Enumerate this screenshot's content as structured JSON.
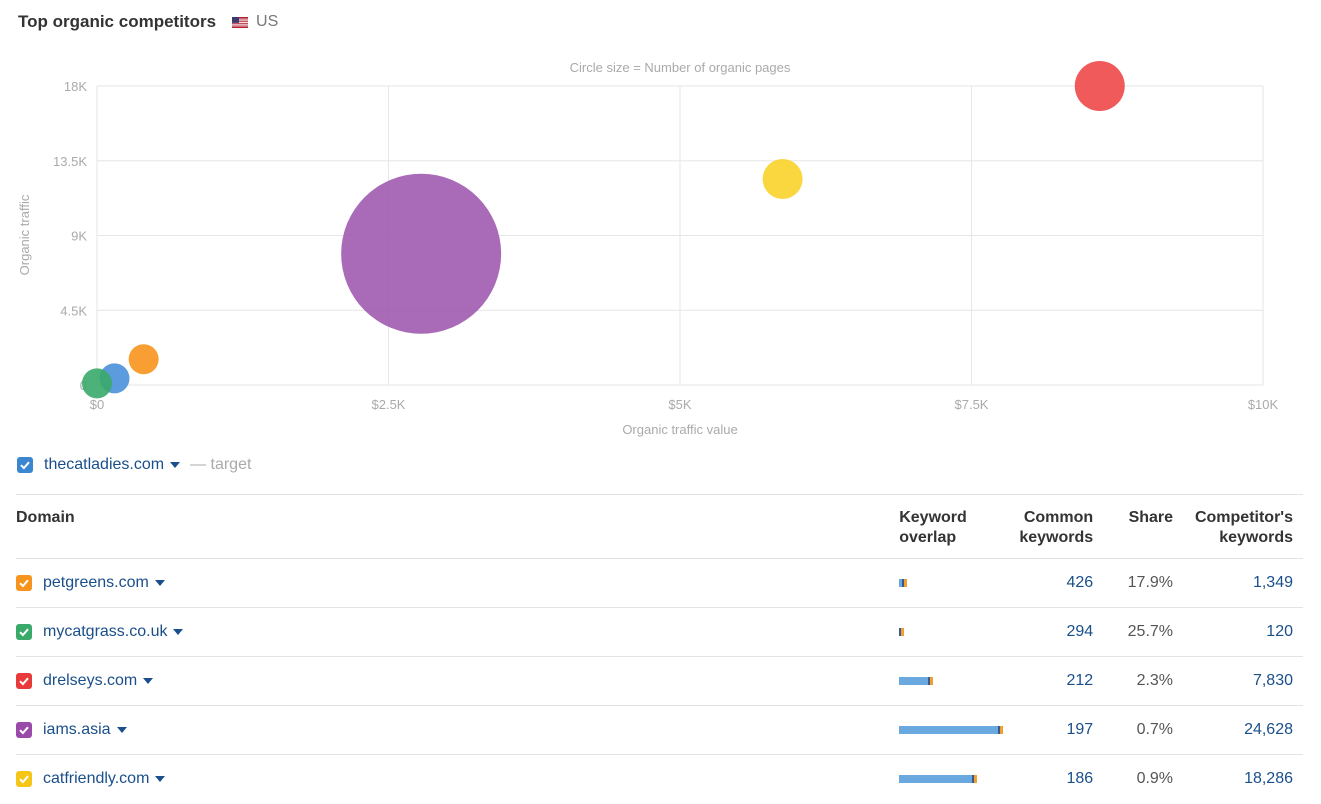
{
  "header": {
    "title": "Top organic competitors",
    "country": "US",
    "flag_icon": "us-flag-icon"
  },
  "chart_data": {
    "type": "scatter",
    "note": "Circle size = Number of organic pages",
    "xlabel": "Organic traffic value",
    "ylabel": "Organic traffic",
    "xlim": [
      0,
      10000
    ],
    "ylim": [
      0,
      18000
    ],
    "x_ticks": [
      {
        "value": 0,
        "label": "$0"
      },
      {
        "value": 2500,
        "label": "$2.5K"
      },
      {
        "value": 5000,
        "label": "$5K"
      },
      {
        "value": 7500,
        "label": "$7.5K"
      },
      {
        "value": 10000,
        "label": "$10K"
      }
    ],
    "y_ticks": [
      {
        "value": 0,
        "label": "0"
      },
      {
        "value": 4500,
        "label": "4.5K"
      },
      {
        "value": 9000,
        "label": "9K"
      },
      {
        "value": 13500,
        "label": "13.5K"
      },
      {
        "value": 18000,
        "label": "18K"
      }
    ],
    "grid": true,
    "points": [
      {
        "domain": "thecatladies.com",
        "x": 150,
        "y": 400,
        "size": 1.2,
        "color": "#4a90d9"
      },
      {
        "domain": "petgreens.com",
        "x": 400,
        "y": 1550,
        "size": 1.2,
        "color": "#f7941d"
      },
      {
        "domain": "mycatgrass.co.uk",
        "x": 0,
        "y": 100,
        "size": 1.2,
        "color": "#3aaa6a"
      },
      {
        "domain": "drelseys.com",
        "x": 8600,
        "y": 18000,
        "size": 2.0,
        "color": "#f04848"
      },
      {
        "domain": "iams.asia",
        "x": 2780,
        "y": 7900,
        "size": 6.4,
        "color": "#a05ab0"
      },
      {
        "domain": "catfriendly.com",
        "x": 5880,
        "y": 12400,
        "size": 1.6,
        "color": "#fad22a"
      }
    ]
  },
  "target": {
    "domain": "thecatladies.com",
    "suffix": "— target",
    "color": "#3a86d0"
  },
  "table": {
    "headers": {
      "domain": "Domain",
      "overlap_l1": "Keyword",
      "overlap_l2": "overlap",
      "common_l1": "Common",
      "common_l2": "keywords",
      "share": "Share",
      "comp_l1": "Competitor's",
      "comp_l2": "keywords"
    },
    "rows": [
      {
        "domain": "petgreens.com",
        "color": "#f7941d",
        "overlap_target": 3,
        "overlap_competitor": 1349,
        "common": "426",
        "share": "17.9%",
        "competitor": "1,349"
      },
      {
        "domain": "mycatgrass.co.uk",
        "color": "#3aaa6a",
        "overlap_target": 0,
        "overlap_competitor": 120,
        "common": "294",
        "share": "25.7%",
        "competitor": "120"
      },
      {
        "domain": "drelseys.com",
        "color": "#e83a3a",
        "overlap_target": 30,
        "overlap_competitor": 7830,
        "common": "212",
        "share": "2.3%",
        "competitor": "7,830"
      },
      {
        "domain": "iams.asia",
        "color": "#9a4aa8",
        "overlap_target": 100,
        "overlap_competitor": 24628,
        "common": "197",
        "share": "0.7%",
        "competitor": "24,628"
      },
      {
        "domain": "catfriendly.com",
        "color": "#f5c518",
        "overlap_target": 73,
        "overlap_competitor": 18286,
        "common": "186",
        "share": "0.9%",
        "competitor": "18,286"
      }
    ]
  }
}
